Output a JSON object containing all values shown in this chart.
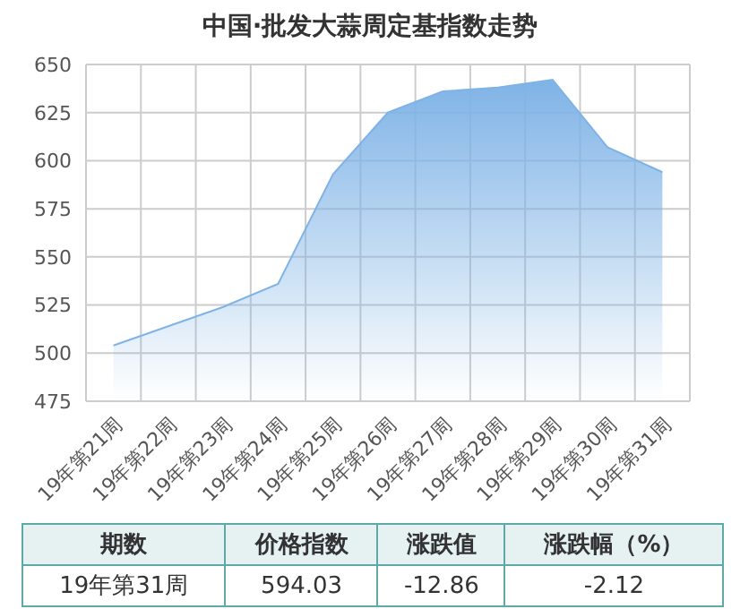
{
  "chart_data": {
    "type": "area",
    "title": "中国·批发大蒜周定基指数走势",
    "categories": [
      "19年第21周",
      "19年第22周",
      "19年第23周",
      "19年第24周",
      "19年第25周",
      "19年第26周",
      "19年第27周",
      "19年第28周",
      "19年第29周",
      "19年第30周",
      "19年第31周"
    ],
    "series": [
      {
        "color": "#7fb3e6",
        "values": [
          504,
          514,
          524,
          536,
          593,
          625,
          636,
          638,
          642,
          607,
          594.03
        ]
      }
    ],
    "ylim": [
      475,
      650
    ],
    "yticks": [
      475,
      500,
      525,
      550,
      575,
      600,
      625,
      650
    ],
    "grid": true,
    "annotations": [
      "期数",
      "价格指数",
      "涨跌值",
      "涨跌幅（%）",
      "19年第31周",
      "594.03",
      "-12.86",
      "-2.12"
    ]
  }
}
